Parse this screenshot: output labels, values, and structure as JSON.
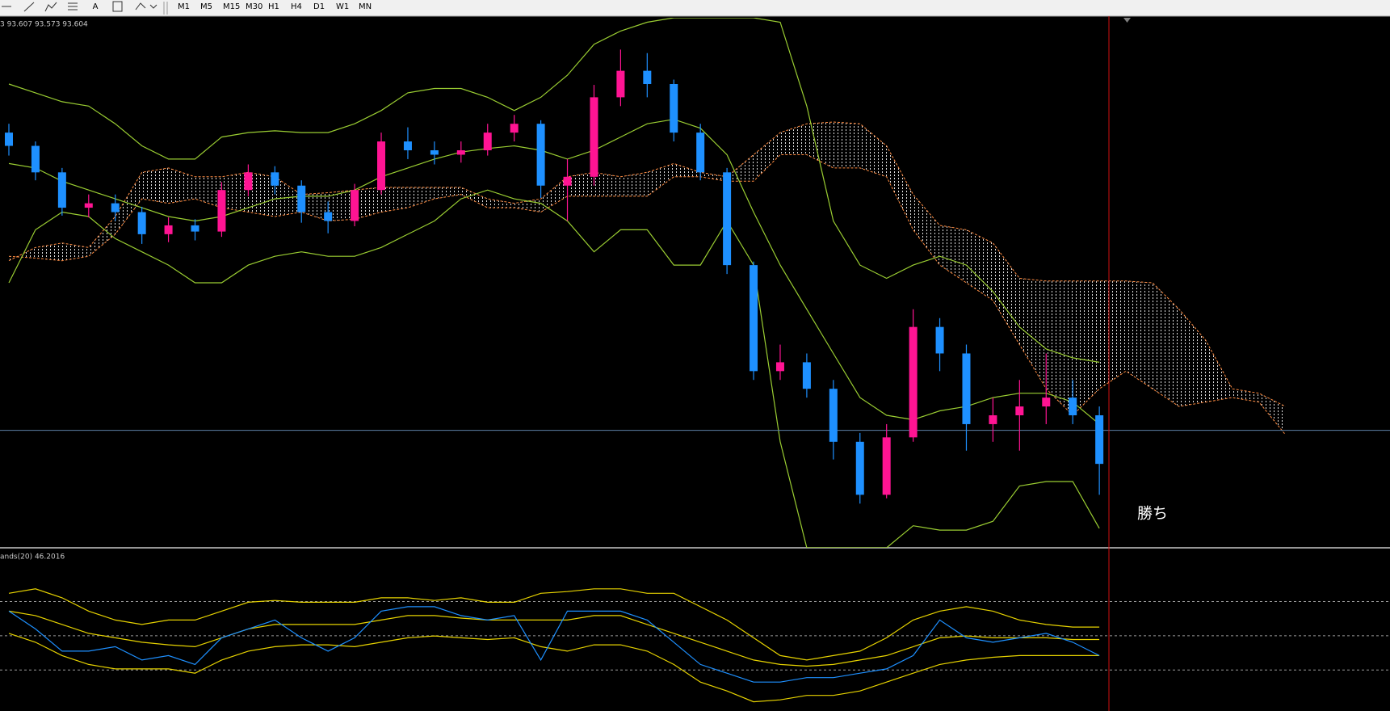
{
  "toolbar": {
    "text_tool": "A",
    "timeframes": [
      "M1",
      "M5",
      "M15",
      "M30",
      "H1",
      "H4",
      "D1",
      "W1",
      "MN"
    ]
  },
  "chart_data": [
    {
      "type": "candlestick",
      "header": "3 93.607 93.573 93.604",
      "annotation": "勝ち",
      "ylim": [
        92.0,
        95.0
      ],
      "up_color": "#ff1493",
      "down_color": "#1e90ff",
      "open": [
        94.35,
        94.275,
        94.125,
        93.925,
        93.95,
        93.9,
        93.775,
        93.825,
        93.79,
        94.025,
        94.125,
        94.05,
        93.9,
        93.85,
        94.025,
        94.3,
        94.25,
        94.225,
        94.25,
        94.35,
        94.4,
        94.05,
        94.1,
        94.55,
        94.7,
        94.625,
        94.35,
        94.125,
        93.6,
        93.0,
        93.05,
        92.9,
        92.6,
        92.3,
        92.625,
        93.25,
        93.1,
        92.7,
        92.75,
        92.8,
        92.85,
        92.75
      ],
      "high": [
        94.4,
        94.3,
        94.15,
        94.0,
        94.0,
        93.93,
        93.87,
        93.86,
        94.07,
        94.17,
        94.16,
        94.08,
        93.96,
        94.06,
        94.35,
        94.38,
        94.3,
        94.3,
        94.4,
        94.45,
        94.42,
        94.2,
        94.62,
        94.82,
        94.8,
        94.65,
        94.4,
        94.15,
        93.62,
        93.15,
        93.1,
        92.95,
        92.65,
        92.7,
        93.35,
        93.3,
        93.15,
        92.85,
        92.95,
        93.1,
        92.95,
        92.8
      ],
      "low": [
        94.22,
        94.08,
        93.88,
        93.87,
        93.85,
        93.72,
        93.73,
        93.74,
        93.76,
        93.99,
        94.0,
        93.84,
        93.78,
        93.82,
        94.0,
        94.2,
        94.17,
        94.18,
        94.22,
        94.3,
        93.98,
        93.85,
        94.05,
        94.5,
        94.55,
        94.3,
        94.08,
        93.55,
        92.95,
        92.95,
        92.85,
        92.5,
        92.25,
        92.28,
        92.6,
        93.0,
        92.55,
        92.6,
        92.55,
        92.7,
        92.7,
        92.3
      ],
      "close": [
        94.275,
        94.125,
        93.925,
        93.95,
        93.9,
        93.775,
        93.825,
        93.79,
        94.025,
        94.125,
        94.05,
        93.9,
        93.85,
        94.025,
        94.3,
        94.25,
        94.225,
        94.25,
        94.35,
        94.4,
        94.05,
        94.1,
        94.55,
        94.7,
        94.625,
        94.35,
        94.125,
        93.6,
        93.0,
        93.05,
        92.9,
        92.6,
        92.3,
        92.625,
        93.25,
        93.1,
        92.7,
        92.75,
        92.8,
        92.85,
        92.75,
        92.475
      ],
      "bands": {
        "color": "#9acd32",
        "upper": [
          94.625,
          94.575,
          94.525,
          94.5,
          94.4,
          94.275,
          94.2,
          94.2,
          94.325,
          94.35,
          94.36,
          94.35,
          94.35,
          94.4,
          94.475,
          94.575,
          94.6,
          94.6,
          94.55,
          94.475,
          94.55,
          94.675,
          94.85,
          94.925,
          94.975,
          95.0,
          95.0,
          95.0,
          95.0,
          94.975,
          94.5,
          93.85,
          93.6,
          93.525,
          93.6,
          93.65,
          93.6,
          93.45,
          93.25,
          93.125,
          93.075,
          93.05
        ],
        "middle": [
          94.175,
          94.15,
          94.075,
          94.025,
          93.975,
          93.925,
          93.875,
          93.85,
          93.875,
          93.925,
          93.975,
          93.99,
          93.99,
          94.025,
          94.1,
          94.15,
          94.2,
          94.24,
          94.26,
          94.275,
          94.25,
          94.2,
          94.25,
          94.325,
          94.4,
          94.425,
          94.375,
          94.225,
          93.9,
          93.6,
          93.35,
          93.1,
          92.85,
          92.75,
          92.725,
          92.775,
          92.8,
          92.85,
          92.875,
          92.875,
          92.825,
          92.7
        ],
        "lower": [
          93.5,
          93.8,
          93.9,
          93.875,
          93.75,
          93.675,
          93.6,
          93.5,
          93.5,
          93.6,
          93.65,
          93.675,
          93.65,
          93.65,
          93.7,
          93.775,
          93.85,
          93.975,
          94.025,
          93.975,
          93.95,
          93.85,
          93.675,
          93.8,
          93.8,
          93.6,
          93.6,
          93.85,
          93.6,
          92.6,
          92.0,
          92.0,
          92.0,
          92.0,
          92.125,
          92.1,
          92.1,
          92.15,
          92.35,
          92.375,
          92.375,
          92.11
        ]
      },
      "cloud": {
        "color": "#ff8c42",
        "span_a": [
          93.625,
          93.7,
          93.725,
          93.7,
          93.875,
          94.125,
          94.15,
          94.1,
          94.1,
          94.125,
          94.1,
          94.0,
          94.01,
          94.025,
          94.04,
          94.04,
          94.04,
          94.04,
          93.975,
          93.95,
          93.975,
          94.1,
          94.125,
          94.1,
          94.125,
          94.175,
          94.125,
          94.1,
          94.225,
          94.35,
          94.4,
          94.41,
          94.4,
          94.275,
          94.0,
          93.825,
          93.8,
          93.725,
          93.525,
          93.51,
          93.51,
          93.51,
          93.51,
          93.5,
          93.35,
          93.175,
          92.9,
          92.875,
          92.8
        ],
        "span_b": [
          93.65,
          93.64,
          93.625,
          93.65,
          93.775,
          93.975,
          93.95,
          93.975,
          93.925,
          93.9,
          93.875,
          93.9,
          93.85,
          93.86,
          93.9,
          93.925,
          93.975,
          94.0,
          93.925,
          93.925,
          93.9,
          93.99,
          93.99,
          93.99,
          93.99,
          94.1,
          94.1,
          94.075,
          94.075,
          94.225,
          94.225,
          94.15,
          94.15,
          94.1,
          93.8,
          93.6,
          93.5,
          93.4,
          93.15,
          92.9,
          92.75,
          92.9,
          93.0,
          92.9,
          92.8,
          92.825,
          92.85,
          92.825,
          92.64
        ]
      },
      "price_line": 92.665,
      "price_line_color": "#5b7fa6"
    },
    {
      "type": "line",
      "label": "ands(20) 46.2016",
      "ylim": [
        6,
        100
      ],
      "levels": [
        30,
        50,
        70
      ],
      "color": "#1e90ff",
      "values": [
        64.4,
        54.0,
        41.0,
        41.0,
        43.6,
        35.8,
        38.4,
        33.2,
        48.8,
        54.0,
        59.2,
        48.8,
        41.0,
        48.8,
        64.4,
        67.0,
        67.0,
        61.8,
        59.2,
        61.8,
        35.8,
        64.4,
        64.4,
        64.4,
        59.2,
        46.2,
        33.2,
        28.1,
        22.9,
        22.9,
        25.5,
        25.5,
        28.1,
        30.6,
        38.4,
        59.2,
        48.8,
        46.2,
        48.8,
        51.4,
        46.2,
        38.4
      ],
      "bands": {
        "color": "#e6d200",
        "upper": [
          74.8,
          77.4,
          72.2,
          64.4,
          59.2,
          56.6,
          59.2,
          59.2,
          64.4,
          69.6,
          70.6,
          69.6,
          69.6,
          69.6,
          72.2,
          72.2,
          70.6,
          72.2,
          69.6,
          69.6,
          74.8,
          75.8,
          77.4,
          77.4,
          74.8,
          74.8,
          67.0,
          59.2,
          48.8,
          38.4,
          35.8,
          38.4,
          41.0,
          48.8,
          59.2,
          64.4,
          67.0,
          64.4,
          59.2,
          56.6,
          55.1,
          55.1
        ],
        "middle": [
          64.4,
          61.8,
          56.6,
          51.4,
          48.8,
          46.2,
          44.7,
          43.6,
          48.8,
          54.0,
          56.6,
          56.6,
          56.6,
          56.6,
          59.2,
          61.8,
          61.8,
          60.3,
          59.2,
          59.2,
          59.2,
          59.2,
          61.8,
          61.8,
          56.6,
          51.4,
          46.2,
          41.0,
          35.8,
          33.2,
          32.2,
          33.2,
          35.8,
          38.4,
          43.6,
          48.8,
          49.9,
          48.8,
          48.8,
          48.8,
          47.8,
          47.8
        ],
        "lower": [
          51.4,
          46.2,
          38.4,
          33.2,
          30.6,
          30.6,
          30.6,
          28.1,
          35.8,
          41.0,
          43.6,
          44.7,
          44.7,
          43.6,
          46.2,
          48.8,
          49.9,
          48.8,
          47.8,
          48.8,
          43.6,
          41.0,
          44.7,
          44.7,
          41.0,
          33.2,
          22.9,
          17.7,
          11.4,
          12.5,
          15.1,
          15.1,
          17.7,
          22.9,
          28.1,
          33.2,
          35.8,
          37.4,
          38.4,
          38.4,
          38.4,
          38.4
        ]
      }
    }
  ]
}
